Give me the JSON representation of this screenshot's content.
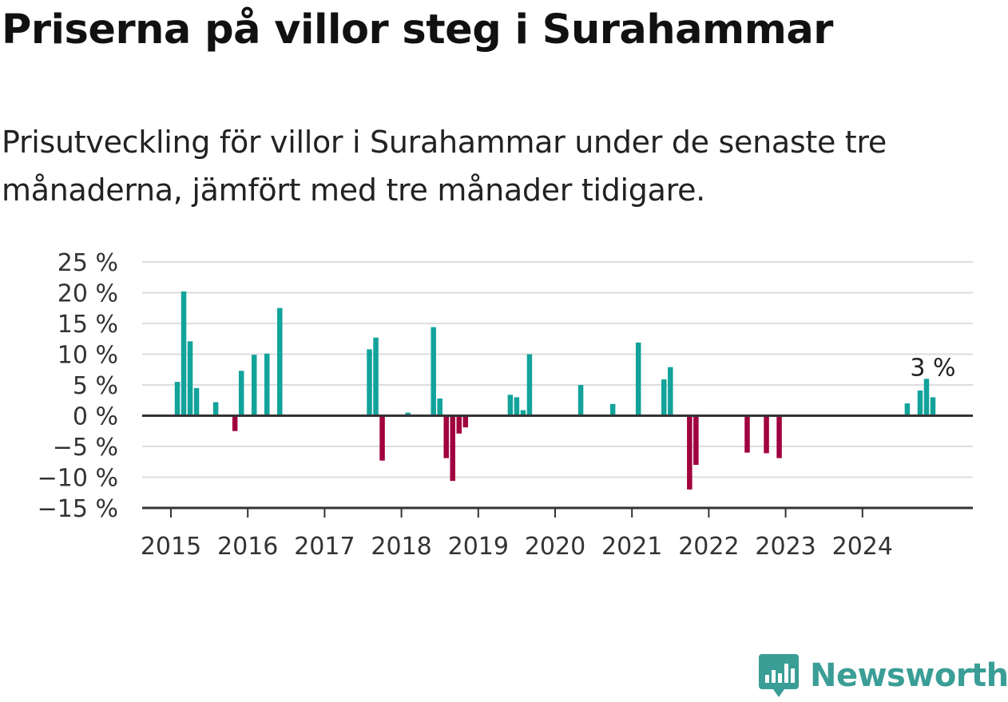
{
  "title": "Priserna på villor steg i Surahammar",
  "subtitle": "Prisutveckling för villor i Surahammar under de senaste tre månaderna, jämfört med tre månader tidigare.",
  "brand": {
    "name": "Newsworthy",
    "color": "#3a9e96"
  },
  "colors": {
    "positive": "#12a39b",
    "negative": "#a0003f",
    "grid": "#dddddd",
    "axis": "#333333"
  },
  "chart_data": {
    "type": "bar",
    "title": "Priserna på villor steg i Surahammar",
    "subtitle": "Prisutveckling för villor i Surahammar under de senaste tre månaderna, jämfört med tre månader tidigare.",
    "ylim": [
      -15,
      25
    ],
    "yticks": [
      25,
      20,
      15,
      10,
      5,
      0,
      -5,
      -10,
      -15
    ],
    "ytick_labels": [
      "25 %",
      "20 %",
      "15 %",
      "10 %",
      "5 %",
      "0 %",
      "−5 %",
      "−10 %",
      "−15 %"
    ],
    "xtick_labels": [
      "2015",
      "2016",
      "2017",
      "2018",
      "2019",
      "2020",
      "2021",
      "2022",
      "2023",
      "2024"
    ],
    "grid": true,
    "annotation": {
      "text": "3 %",
      "date": "2024-11"
    },
    "dates": [
      "2015-02",
      "2015-03",
      "2015-04",
      "2015-05",
      "2015-08",
      "2015-11",
      "2015-12",
      "2016-02",
      "2016-04",
      "2016-06",
      "2017-08",
      "2017-09",
      "2017-10",
      "2018-02",
      "2018-06",
      "2018-07",
      "2018-08",
      "2018-09",
      "2018-10",
      "2018-11",
      "2019-06",
      "2019-07",
      "2019-08",
      "2019-09",
      "2020-05",
      "2020-10",
      "2021-02",
      "2021-06",
      "2021-07",
      "2021-10",
      "2021-11",
      "2022-07",
      "2022-10",
      "2022-12",
      "2024-08",
      "2024-10",
      "2024-11",
      "2024-12"
    ],
    "values": [
      5.5,
      20.2,
      12.1,
      4.5,
      2.2,
      -2.5,
      7.3,
      9.9,
      10.1,
      17.5,
      10.8,
      12.7,
      -7.3,
      0.5,
      14.4,
      2.8,
      -6.9,
      -10.6,
      -2.9,
      -1.9,
      3.4,
      3.0,
      0.9,
      10.0,
      5.0,
      1.9,
      11.9,
      5.9,
      7.9,
      -12.0,
      -8.0,
      -6.0,
      -6.1,
      -6.9,
      2.0,
      4.1,
      6.0,
      3.0
    ]
  }
}
